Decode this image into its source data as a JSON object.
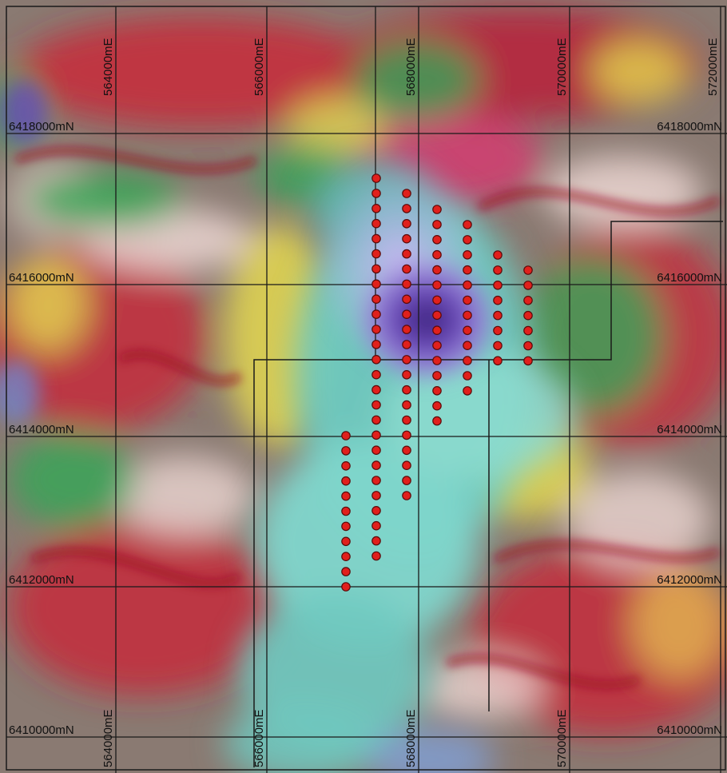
{
  "map": {
    "easting_labels_top": [
      "564000mE",
      "566000mE",
      "568000mE",
      "570000mE",
      "572000mE"
    ],
    "easting_labels_bottom": [
      "564000mE",
      "566000mE",
      "568000mE",
      "570000mE"
    ],
    "northing_labels_left": [
      "6418000mN",
      "6416000mN",
      "6414000mN",
      "6412000mN",
      "6410000mN"
    ],
    "northing_labels_right": [
      "6418000mN",
      "6416000mN",
      "6414000mN",
      "6412000mN",
      "6410000mN"
    ],
    "colors": {
      "gridline": "#1a1a1a",
      "sample_point": "#e0201c",
      "sample_outline": "#5a0a0a",
      "low_anomaly": "#4a2a8a",
      "teal": "#6ec9c0",
      "green": "#3aa558",
      "yellow": "#e4d850",
      "red": "#c8283a",
      "grey_brown": "#8a7a72",
      "pink_white": "#ecd6d2"
    },
    "legend_icons": [
      "sample-point-icon"
    ]
  }
}
